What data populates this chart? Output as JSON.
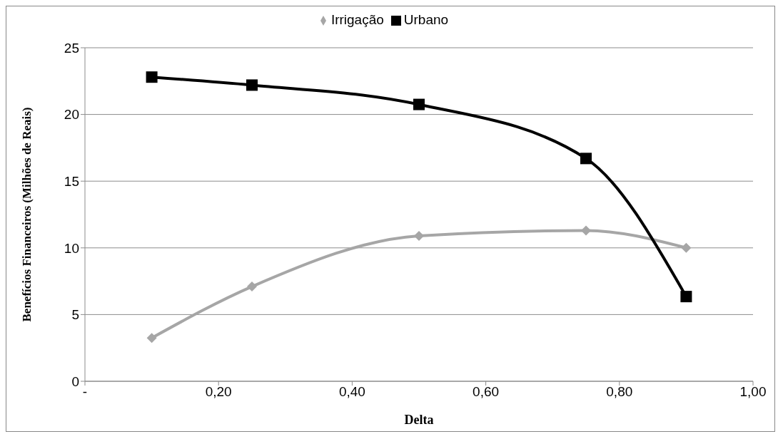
{
  "chart_data": {
    "type": "line",
    "xlabel": "Delta",
    "ylabel": "Benefícios Financeiros (Milhões de Reais)",
    "x": [
      0.1,
      0.25,
      0.5,
      0.75,
      0.9
    ],
    "series": [
      {
        "name": "Irrigação",
        "color": "#a6a6a6",
        "marker": "diamond",
        "values": [
          3.25,
          7.1,
          10.9,
          11.3,
          10.0
        ]
      },
      {
        "name": "Urbano",
        "color": "#000000",
        "marker": "square",
        "values": [
          22.8,
          22.2,
          20.75,
          16.7,
          6.35
        ]
      }
    ],
    "xlim": [
      0,
      1
    ],
    "xticks": [
      {
        "value": 0,
        "label": "-"
      },
      {
        "value": 0.2,
        "label": "0,20"
      },
      {
        "value": 0.4,
        "label": "0,40"
      },
      {
        "value": 0.6,
        "label": "0,60"
      },
      {
        "value": 0.8,
        "label": "0,80"
      },
      {
        "value": 1,
        "label": "1,00"
      }
    ],
    "ylim": [
      0,
      25
    ],
    "yticks": [
      0,
      5,
      10,
      15,
      20,
      25
    ],
    "grid": "y",
    "legend": "top",
    "line_style": "solid"
  }
}
